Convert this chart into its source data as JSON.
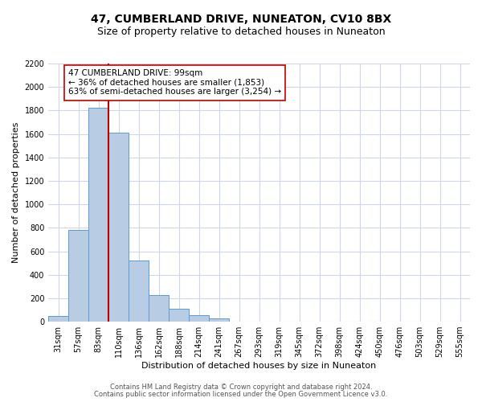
{
  "title": "47, CUMBERLAND DRIVE, NUNEATON, CV10 8BX",
  "subtitle": "Size of property relative to detached houses in Nuneaton",
  "xlabel": "Distribution of detached houses by size in Nuneaton",
  "ylabel": "Number of detached properties",
  "bar_labels": [
    "31sqm",
    "57sqm",
    "83sqm",
    "110sqm",
    "136sqm",
    "162sqm",
    "188sqm",
    "214sqm",
    "241sqm",
    "267sqm",
    "293sqm",
    "319sqm",
    "345sqm",
    "372sqm",
    "398sqm",
    "424sqm",
    "450sqm",
    "476sqm",
    "503sqm",
    "529sqm",
    "555sqm"
  ],
  "bar_values": [
    50,
    780,
    1820,
    1610,
    520,
    230,
    110,
    55,
    25,
    0,
    0,
    0,
    0,
    0,
    0,
    0,
    0,
    0,
    0,
    0,
    0
  ],
  "bar_color": "#b8cce4",
  "bar_edge_color": "#5b9bd5",
  "ylim": [
    0,
    2200
  ],
  "yticks": [
    0,
    200,
    400,
    600,
    800,
    1000,
    1200,
    1400,
    1600,
    1800,
    2000,
    2200
  ],
  "property_line_color": "#c00000",
  "annotation_text": "47 CUMBERLAND DRIVE: 99sqm\n← 36% of detached houses are smaller (1,853)\n63% of semi-detached houses are larger (3,254) →",
  "annotation_box_color": "#ffffff",
  "annotation_box_edge": "#c00000",
  "footer_line1": "Contains HM Land Registry data © Crown copyright and database right 2024.",
  "footer_line2": "Contains public sector information licensed under the Open Government Licence v3.0.",
  "bg_color": "#ffffff",
  "grid_color": "#d0d8e8",
  "title_fontsize": 10,
  "subtitle_fontsize": 9,
  "axis_label_fontsize": 8,
  "tick_fontsize": 7,
  "annotation_fontsize": 7.5,
  "footer_fontsize": 6
}
